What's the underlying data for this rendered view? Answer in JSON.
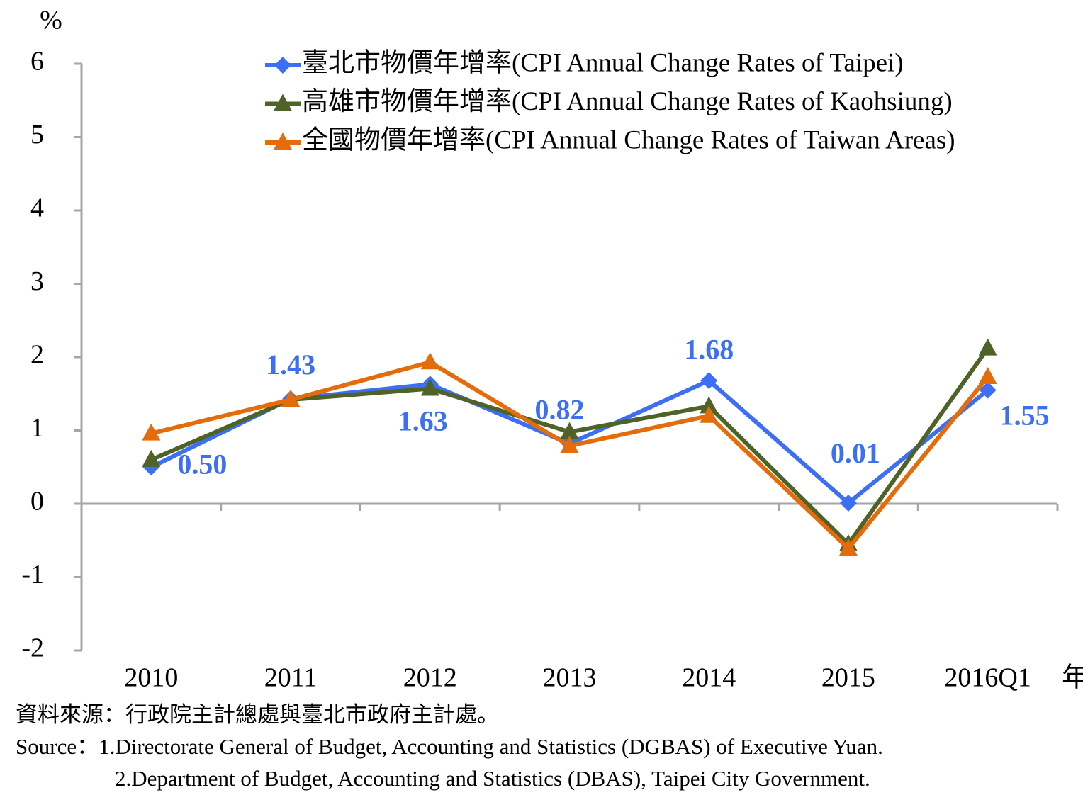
{
  "chart_data": {
    "type": "line",
    "y_label": "%",
    "x_label": "年",
    "categories": [
      "2010",
      "2011",
      "2012",
      "2013",
      "2014",
      "2015",
      "2016Q1"
    ],
    "series": [
      {
        "name": "臺北市物價年增率(CPI Annual Change Rates of Taipei)",
        "color": "#3d6ff5",
        "marker": "diamond",
        "values": [
          0.5,
          1.43,
          1.63,
          0.82,
          1.68,
          0.01,
          1.55
        ],
        "value_labels": [
          "0.50",
          "1.43",
          "1.63",
          "0.82",
          "1.68",
          "0.01",
          "1.55"
        ]
      },
      {
        "name": "高雄市物價年增率(CPI Annual Change Rates of Kaohsiung)",
        "color": "#4f6228",
        "marker": "triangle",
        "values": [
          0.6,
          1.42,
          1.57,
          0.98,
          1.33,
          -0.55,
          2.12
        ]
      },
      {
        "name": "全國物價年增率(CPI Annual Change Rates of Taiwan Areas)",
        "color": "#e46c0a",
        "marker": "triangle",
        "values": [
          0.96,
          1.42,
          1.93,
          0.79,
          1.2,
          -0.61,
          1.73
        ]
      }
    ],
    "ylim": [
      -2,
      6
    ],
    "yticks": [
      -2,
      -1,
      0,
      1,
      2,
      3,
      4,
      5,
      6
    ],
    "grid": false,
    "notes": [
      "資料來源：行政院主計總處與臺北市政府主計處。",
      "Source：1.Directorate General of Budget, Accounting and Statistics (DGBAS) of Executive Yuan.",
      "2.Department of Budget, Accounting and Statistics (DBAS), Taipei City Government."
    ]
  }
}
